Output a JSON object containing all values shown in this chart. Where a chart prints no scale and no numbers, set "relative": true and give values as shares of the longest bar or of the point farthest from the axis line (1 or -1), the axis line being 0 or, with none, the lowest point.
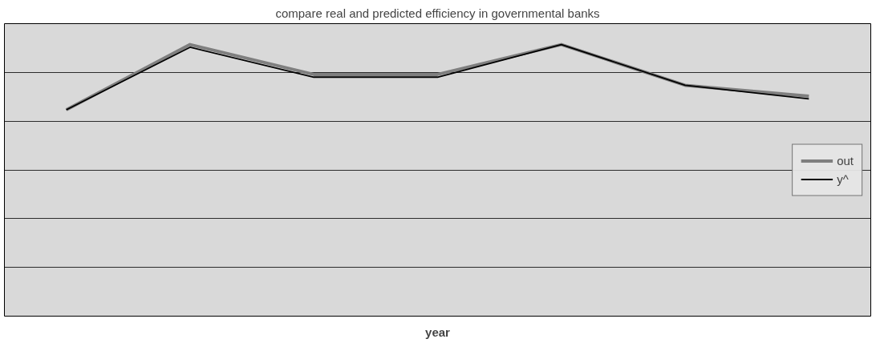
{
  "chart_data": {
    "type": "line",
    "title": "compare real and predicted efficiency in governmental banks",
    "xlabel": "year",
    "relative": true,
    "categories": [
      null,
      null,
      null,
      null,
      null,
      null,
      null
    ],
    "series": [
      {
        "name": "out",
        "color": "#7f7f7f",
        "values": [
          0.76,
          1.0,
          0.89,
          0.89,
          1.0,
          0.85,
          0.81
        ]
      },
      {
        "name": "y^",
        "color": "#000000",
        "values": [
          0.76,
          0.99,
          0.88,
          0.88,
          1.0,
          0.85,
          0.8
        ]
      }
    ],
    "grid": "y",
    "legend": "right",
    "marker": "none",
    "line_style": "solid"
  }
}
